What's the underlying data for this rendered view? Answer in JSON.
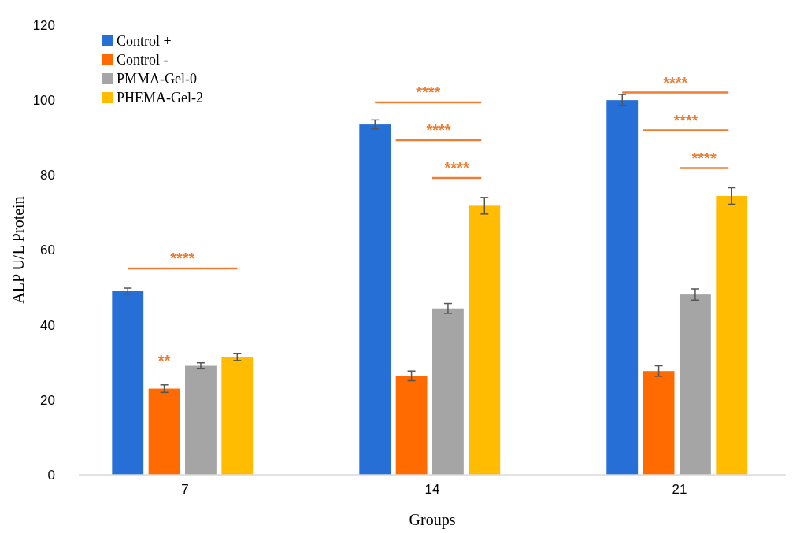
{
  "chart_data": {
    "type": "bar",
    "xlabel": "Groups",
    "ylabel": "ALP U/L Protein",
    "categories": [
      "7",
      "14",
      "21"
    ],
    "series": [
      {
        "name": "Control +",
        "color": "#256fd6",
        "values": [
          49,
          93.5,
          100
        ],
        "errors": [
          0.8,
          1.2,
          1.5
        ]
      },
      {
        "name": "Control -",
        "color": "#ff6b00",
        "values": [
          23,
          26.4,
          27.7
        ],
        "errors": [
          1,
          1.3,
          1.4
        ]
      },
      {
        "name": "PMMA-Gel-0",
        "color": "#a5a5a5",
        "values": [
          29.1,
          44.4,
          48.1
        ],
        "errors": [
          0.8,
          1.3,
          1.5
        ]
      },
      {
        "name": "PHEMA-Gel-2",
        "color": "#ffbc00",
        "values": [
          31.4,
          71.8,
          74.4
        ],
        "errors": [
          0.9,
          2.2,
          2.2
        ]
      }
    ],
    "ylim": [
      0,
      120
    ],
    "yticks": [
      0,
      20,
      40,
      60,
      80,
      100,
      120
    ],
    "grid": false,
    "legend": "top left",
    "annotations": [
      "****",
      "**",
      "****",
      "****",
      "****",
      "****",
      "****",
      "****"
    ]
  }
}
